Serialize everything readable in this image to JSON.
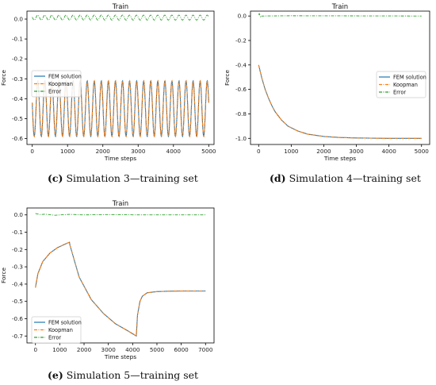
{
  "chart_data": [
    {
      "id": "c",
      "type": "line",
      "title": "Train",
      "xlabel": "Time steps",
      "ylabel": "Force",
      "xlim": [
        -150,
        5150
      ],
      "ylim": [
        -0.63,
        0.04
      ],
      "xticks": [
        "0",
        "1000",
        "2000",
        "3000",
        "4000",
        "5000"
      ],
      "xtick_values": [
        0,
        1000,
        2000,
        3000,
        4000,
        5000
      ],
      "yticks": [
        "0.0",
        "-0.1",
        "-0.2",
        "-0.3",
        "-0.4",
        "-0.5",
        "-0.6"
      ],
      "ytick_values": [
        0.0,
        -0.1,
        -0.2,
        -0.3,
        -0.4,
        -0.5,
        -0.6
      ],
      "legend": "upper left",
      "series": [
        {
          "name": "FEM solution",
          "color": "#1f77b4",
          "style": "solid",
          "description": "oscillation between -0.59 and -0.31, period about 200 steps",
          "oscillation": {
            "min": -0.59,
            "max": -0.31,
            "period": 200,
            "start_value": -0.48
          }
        },
        {
          "name": "Koopman",
          "color": "#ff7f0e",
          "style": "dashdot",
          "oscillation": {
            "min": -0.59,
            "max": -0.31,
            "period": 200,
            "start_value": -0.48
          }
        },
        {
          "name": "Error",
          "color": "#2ca02c",
          "style": "dashdot",
          "oscillation": {
            "min": -0.005,
            "max": 0.02,
            "period": 200,
            "start_value": 0.005
          }
        }
      ],
      "caption_label": "(c)",
      "caption_text": "Simulation 3—training set"
    },
    {
      "id": "d",
      "type": "line",
      "title": "Train",
      "xlabel": "Time steps",
      "ylabel": "Force",
      "xlim": [
        -250,
        5250
      ],
      "ylim": [
        -1.05,
        0.04
      ],
      "xticks": [
        "0",
        "1000",
        "2000",
        "3000",
        "4000",
        "5000"
      ],
      "xtick_values": [
        0,
        1000,
        2000,
        3000,
        4000,
        5000
      ],
      "yticks": [
        "0.0",
        "-0.2",
        "-0.4",
        "-0.6",
        "-0.8",
        "-1.0"
      ],
      "ytick_values": [
        0.0,
        -0.2,
        -0.4,
        -0.6,
        -0.8,
        -1.0
      ],
      "legend": "center right",
      "series": [
        {
          "name": "FEM solution",
          "color": "#1f77b4",
          "style": "solid",
          "x": [
            0,
            100,
            200,
            300,
            400,
            500,
            700,
            900,
            1200,
            1500,
            2000,
            2500,
            3000,
            4000,
            5000
          ],
          "y": [
            -0.4,
            -0.51,
            -0.6,
            -0.67,
            -0.73,
            -0.78,
            -0.85,
            -0.9,
            -0.94,
            -0.965,
            -0.985,
            -0.993,
            -0.997,
            -1.0,
            -1.0
          ]
        },
        {
          "name": "Koopman",
          "color": "#ff7f0e",
          "style": "dashdot",
          "x": [
            0,
            100,
            200,
            300,
            400,
            500,
            700,
            900,
            1200,
            1500,
            2000,
            2500,
            3000,
            4000,
            5000
          ],
          "y": [
            -0.4,
            -0.51,
            -0.6,
            -0.67,
            -0.73,
            -0.78,
            -0.85,
            -0.9,
            -0.94,
            -0.965,
            -0.985,
            -0.993,
            -0.997,
            -1.0,
            -1.0
          ]
        },
        {
          "name": "Error",
          "color": "#2ca02c",
          "style": "dashdot",
          "x": [
            0,
            20,
            60,
            100,
            1000,
            3000,
            5000
          ],
          "y": [
            0.01,
            0.02,
            -0.01,
            0.0,
            0.002,
            0.001,
            0.0
          ]
        }
      ],
      "caption_label": "(d)",
      "caption_text": "Simulation 4—training set"
    },
    {
      "id": "e",
      "type": "line",
      "title": "Train",
      "xlabel": "Time steps",
      "ylabel": "Force",
      "xlim": [
        -350,
        7350
      ],
      "ylim": [
        -0.74,
        0.04
      ],
      "xticks": [
        "0",
        "1000",
        "2000",
        "3000",
        "4000",
        "5000",
        "6000",
        "7000"
      ],
      "xtick_values": [
        0,
        1000,
        2000,
        3000,
        4000,
        5000,
        6000,
        7000
      ],
      "yticks": [
        "0.0",
        "-0.1",
        "-0.2",
        "-0.3",
        "-0.4",
        "-0.5",
        "-0.6",
        "-0.7"
      ],
      "ytick_values": [
        0.0,
        -0.1,
        -0.2,
        -0.3,
        -0.4,
        -0.5,
        -0.6,
        -0.7
      ],
      "legend": "lower left",
      "series": [
        {
          "name": "FEM solution",
          "color": "#1f77b4",
          "style": "solid",
          "x": [
            0,
            100,
            300,
            600,
            900,
            1200,
            1400,
            1420,
            1800,
            2300,
            2800,
            3300,
            3800,
            4150,
            4200,
            4300,
            4400,
            4600,
            5000,
            5500,
            6000,
            7000
          ],
          "y": [
            -0.42,
            -0.34,
            -0.27,
            -0.22,
            -0.19,
            -0.17,
            -0.158,
            -0.175,
            -0.36,
            -0.49,
            -0.57,
            -0.63,
            -0.67,
            -0.7,
            -0.58,
            -0.5,
            -0.47,
            -0.45,
            -0.443,
            -0.441,
            -0.44,
            -0.44
          ]
        },
        {
          "name": "Koopman",
          "color": "#ff7f0e",
          "style": "dashdot",
          "x": [
            0,
            100,
            300,
            600,
            900,
            1200,
            1400,
            1420,
            1800,
            2300,
            2800,
            3300,
            3800,
            4150,
            4200,
            4300,
            4400,
            4600,
            5000,
            5500,
            6000,
            7000
          ],
          "y": [
            -0.42,
            -0.34,
            -0.27,
            -0.22,
            -0.19,
            -0.17,
            -0.158,
            -0.175,
            -0.36,
            -0.49,
            -0.57,
            -0.63,
            -0.67,
            -0.7,
            -0.58,
            -0.5,
            -0.47,
            -0.45,
            -0.443,
            -0.441,
            -0.44,
            -0.44
          ]
        },
        {
          "name": "Error",
          "color": "#2ca02c",
          "style": "dashdot",
          "x": [
            0,
            200,
            400,
            800,
            1400,
            2000,
            3000,
            4200,
            5000,
            7000
          ],
          "y": [
            0.008,
            0.002,
            0.004,
            -0.002,
            0.003,
            0.0,
            0.002,
            0.0,
            0.0,
            0.0
          ]
        }
      ],
      "caption_label": "(e)",
      "caption_text": "Simulation 5—training set"
    }
  ]
}
